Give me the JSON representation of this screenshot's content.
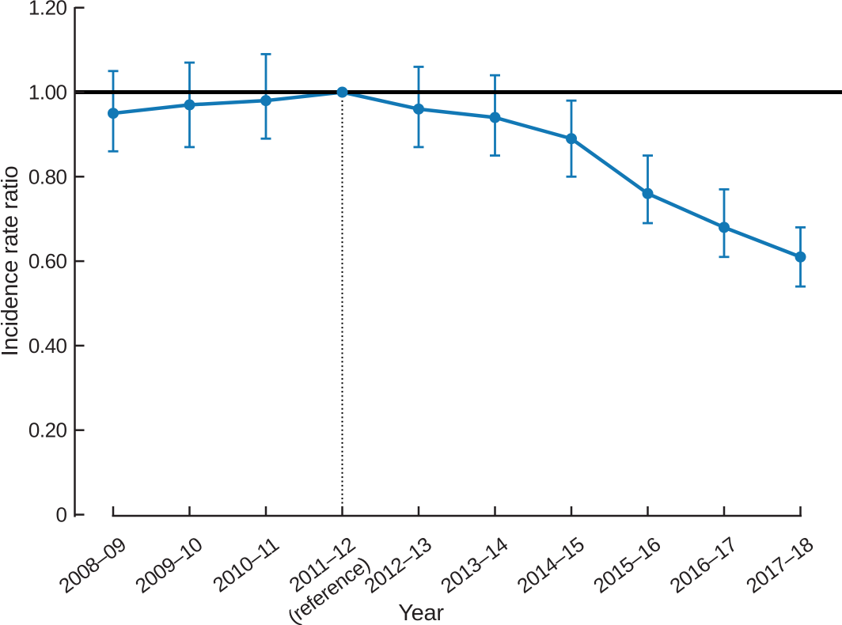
{
  "figure": {
    "background": "#ffffff"
  },
  "chart_data": {
    "type": "line",
    "title": "",
    "xlabel": "Year",
    "ylabel": "Incidence rate ratio",
    "ylim": [
      0,
      1.2
    ],
    "grid": false,
    "legend": false,
    "y_ticks": [
      {
        "value": 0,
        "label": "0"
      },
      {
        "value": 0.2,
        "label": "0.20"
      },
      {
        "value": 0.4,
        "label": "0.40"
      },
      {
        "value": 0.6,
        "label": "0.60"
      },
      {
        "value": 0.8,
        "label": "0.80"
      },
      {
        "value": 1.0,
        "label": "1.00"
      },
      {
        "value": 1.2,
        "label": "1.20"
      }
    ],
    "categories": [
      "2008–09",
      "2009–10",
      "2010–11",
      "2011–12",
      "2012–13",
      "2013–14",
      "2014–15",
      "2015–16",
      "2016–17",
      "2017–18"
    ],
    "category_sublabels": [
      "",
      "",
      "",
      "(reference)",
      "",
      "",
      "",
      "",
      "",
      ""
    ],
    "reference_category_index": 3,
    "reference_line_value": 1.0,
    "series": [
      {
        "name": "Incidence rate ratio",
        "values": [
          0.95,
          0.97,
          0.98,
          1.0,
          0.96,
          0.94,
          0.89,
          0.76,
          0.68,
          0.61
        ],
        "ci_low": [
          0.86,
          0.87,
          0.89,
          null,
          0.87,
          0.85,
          0.8,
          0.69,
          0.61,
          0.54
        ],
        "ci_high": [
          1.05,
          1.07,
          1.09,
          null,
          1.06,
          1.04,
          0.98,
          0.85,
          0.77,
          0.68
        ]
      }
    ],
    "colors": {
      "series": "#1278B5",
      "reference_line": "#000000",
      "dotted_line": "#000000",
      "axis": "#231f20",
      "text": "#231f20"
    }
  }
}
